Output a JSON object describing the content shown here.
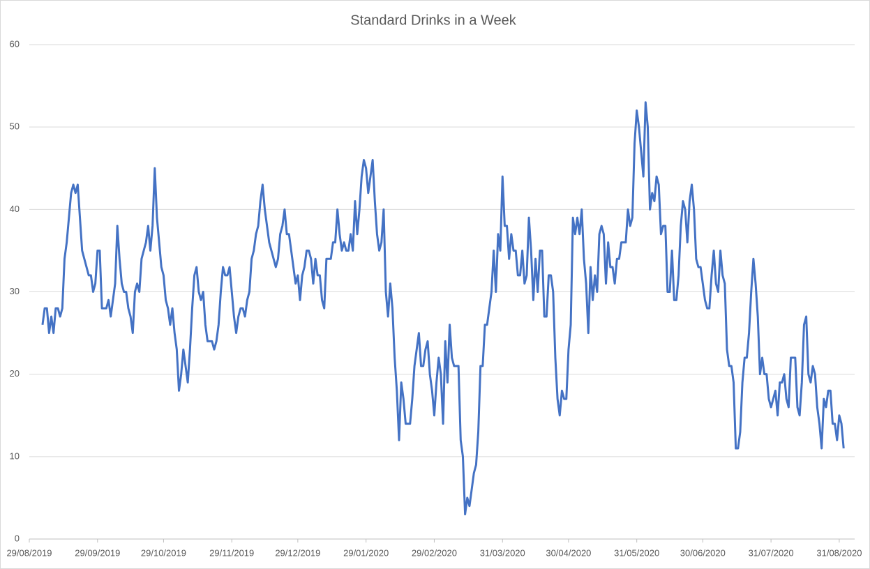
{
  "chart_data": {
    "type": "line",
    "title": "Standard Drinks in a Week",
    "x": [
      "2019-09-04",
      "2019-09-05",
      "2019-09-06",
      "2019-09-07",
      "2019-09-08",
      "2019-09-09",
      "2019-09-10",
      "2019-09-11",
      "2019-09-12",
      "2019-09-13",
      "2019-09-14",
      "2019-09-15",
      "2019-09-16",
      "2019-09-17",
      "2019-09-18",
      "2019-09-19",
      "2019-09-20",
      "2019-09-21",
      "2019-09-22",
      "2019-09-23",
      "2019-09-24",
      "2019-09-25",
      "2019-09-26",
      "2019-09-27",
      "2019-09-28",
      "2019-09-29",
      "2019-09-30",
      "2019-10-01",
      "2019-10-02",
      "2019-10-03",
      "2019-10-04",
      "2019-10-05",
      "2019-10-06",
      "2019-10-07",
      "2019-10-08",
      "2019-10-09",
      "2019-10-10",
      "2019-10-11",
      "2019-10-12",
      "2019-10-13",
      "2019-10-14",
      "2019-10-15",
      "2019-10-16",
      "2019-10-17",
      "2019-10-18",
      "2019-10-19",
      "2019-10-20",
      "2019-10-21",
      "2019-10-22",
      "2019-10-23",
      "2019-10-24",
      "2019-10-25",
      "2019-10-26",
      "2019-10-27",
      "2019-10-28",
      "2019-10-29",
      "2019-10-30",
      "2019-10-31",
      "2019-11-01",
      "2019-11-02",
      "2019-11-03",
      "2019-11-04",
      "2019-11-05",
      "2019-11-06",
      "2019-11-07",
      "2019-11-08",
      "2019-11-09",
      "2019-11-10",
      "2019-11-11",
      "2019-11-12",
      "2019-11-13",
      "2019-11-14",
      "2019-11-15",
      "2019-11-16",
      "2019-11-17",
      "2019-11-18",
      "2019-11-19",
      "2019-11-20",
      "2019-11-21",
      "2019-11-22",
      "2019-11-23",
      "2019-11-24",
      "2019-11-25",
      "2019-11-26",
      "2019-11-27",
      "2019-11-28",
      "2019-11-29",
      "2019-11-30",
      "2019-12-01",
      "2019-12-02",
      "2019-12-03",
      "2019-12-04",
      "2019-12-05",
      "2019-12-06",
      "2019-12-07",
      "2019-12-08",
      "2019-12-09",
      "2019-12-10",
      "2019-12-11",
      "2019-12-12",
      "2019-12-13",
      "2019-12-14",
      "2019-12-15",
      "2019-12-16",
      "2019-12-17",
      "2019-12-18",
      "2019-12-19",
      "2019-12-20",
      "2019-12-21",
      "2019-12-22",
      "2019-12-23",
      "2019-12-24",
      "2019-12-25",
      "2019-12-26",
      "2019-12-27",
      "2019-12-28",
      "2019-12-29",
      "2019-12-30",
      "2019-12-31",
      "2020-01-01",
      "2020-01-02",
      "2020-01-03",
      "2020-01-04",
      "2020-01-05",
      "2020-01-06",
      "2020-01-07",
      "2020-01-08",
      "2020-01-09",
      "2020-01-10",
      "2020-01-11",
      "2020-01-12",
      "2020-01-13",
      "2020-01-14",
      "2020-01-15",
      "2020-01-16",
      "2020-01-17",
      "2020-01-18",
      "2020-01-19",
      "2020-01-20",
      "2020-01-21",
      "2020-01-22",
      "2020-01-23",
      "2020-01-24",
      "2020-01-25",
      "2020-01-26",
      "2020-01-27",
      "2020-01-28",
      "2020-01-29",
      "2020-01-30",
      "2020-01-31",
      "2020-02-01",
      "2020-02-02",
      "2020-02-03",
      "2020-02-04",
      "2020-02-05",
      "2020-02-06",
      "2020-02-07",
      "2020-02-08",
      "2020-02-09",
      "2020-02-10",
      "2020-02-11",
      "2020-02-12",
      "2020-02-13",
      "2020-02-14",
      "2020-02-15",
      "2020-02-16",
      "2020-02-17",
      "2020-02-18",
      "2020-02-19",
      "2020-02-20",
      "2020-02-21",
      "2020-02-22",
      "2020-02-23",
      "2020-02-24",
      "2020-02-25",
      "2020-02-26",
      "2020-02-27",
      "2020-02-28",
      "2020-02-29",
      "2020-03-01",
      "2020-03-02",
      "2020-03-03",
      "2020-03-04",
      "2020-03-05",
      "2020-03-06",
      "2020-03-07",
      "2020-03-08",
      "2020-03-09",
      "2020-03-10",
      "2020-03-11",
      "2020-03-12",
      "2020-03-13",
      "2020-03-14",
      "2020-03-15",
      "2020-03-16",
      "2020-03-17",
      "2020-03-18",
      "2020-03-19",
      "2020-03-20",
      "2020-03-21",
      "2020-03-22",
      "2020-03-23",
      "2020-03-24",
      "2020-03-25",
      "2020-03-26",
      "2020-03-27",
      "2020-03-28",
      "2020-03-29",
      "2020-03-30",
      "2020-03-31",
      "2020-04-01",
      "2020-04-02",
      "2020-04-03",
      "2020-04-04",
      "2020-04-05",
      "2020-04-06",
      "2020-04-07",
      "2020-04-08",
      "2020-04-09",
      "2020-04-10",
      "2020-04-11",
      "2020-04-12",
      "2020-04-13",
      "2020-04-14",
      "2020-04-15",
      "2020-04-16",
      "2020-04-17",
      "2020-04-18",
      "2020-04-19",
      "2020-04-20",
      "2020-04-21",
      "2020-04-22",
      "2020-04-23",
      "2020-04-24",
      "2020-04-25",
      "2020-04-26",
      "2020-04-27",
      "2020-04-28",
      "2020-04-29",
      "2020-04-30",
      "2020-05-01",
      "2020-05-02",
      "2020-05-03",
      "2020-05-04",
      "2020-05-05",
      "2020-05-06",
      "2020-05-07",
      "2020-05-08",
      "2020-05-09",
      "2020-05-10",
      "2020-05-11",
      "2020-05-12",
      "2020-05-13",
      "2020-05-14",
      "2020-05-15",
      "2020-05-16",
      "2020-05-17",
      "2020-05-18",
      "2020-05-19",
      "2020-05-20",
      "2020-05-21",
      "2020-05-22",
      "2020-05-23",
      "2020-05-24",
      "2020-05-25",
      "2020-05-26",
      "2020-05-27",
      "2020-05-28",
      "2020-05-29",
      "2020-05-30",
      "2020-05-31",
      "2020-06-01",
      "2020-06-02",
      "2020-06-03",
      "2020-06-04",
      "2020-06-05",
      "2020-06-06",
      "2020-06-07",
      "2020-06-08",
      "2020-06-09",
      "2020-06-10",
      "2020-06-11",
      "2020-06-12",
      "2020-06-13",
      "2020-06-14",
      "2020-06-15",
      "2020-06-16",
      "2020-06-17",
      "2020-06-18",
      "2020-06-19",
      "2020-06-20",
      "2020-06-21",
      "2020-06-22",
      "2020-06-23",
      "2020-06-24",
      "2020-06-25",
      "2020-06-26",
      "2020-06-27",
      "2020-06-28",
      "2020-06-29",
      "2020-06-30",
      "2020-07-01",
      "2020-07-02",
      "2020-07-03",
      "2020-07-04",
      "2020-07-05",
      "2020-07-06",
      "2020-07-07",
      "2020-07-08",
      "2020-07-09",
      "2020-07-10",
      "2020-07-11",
      "2020-07-12",
      "2020-07-13",
      "2020-07-14",
      "2020-07-15",
      "2020-07-16",
      "2020-07-17",
      "2020-07-18",
      "2020-07-19",
      "2020-07-20",
      "2020-07-21",
      "2020-07-22",
      "2020-07-23",
      "2020-07-24",
      "2020-07-25",
      "2020-07-26",
      "2020-07-27",
      "2020-07-28",
      "2020-07-29",
      "2020-07-30",
      "2020-07-31",
      "2020-08-01",
      "2020-08-02",
      "2020-08-03",
      "2020-08-04",
      "2020-08-05",
      "2020-08-06",
      "2020-08-07",
      "2020-08-08",
      "2020-08-09",
      "2020-08-10",
      "2020-08-11",
      "2020-08-12",
      "2020-08-13",
      "2020-08-14",
      "2020-08-15",
      "2020-08-16",
      "2020-08-17",
      "2020-08-18",
      "2020-08-19",
      "2020-08-20",
      "2020-08-21",
      "2020-08-22",
      "2020-08-23",
      "2020-08-24",
      "2020-08-25",
      "2020-08-26",
      "2020-08-27",
      "2020-08-28",
      "2020-08-29",
      "2020-08-30",
      "2020-08-31",
      "2020-09-01",
      "2020-09-02"
    ],
    "series": [
      {
        "color": "#4472c4",
        "values": [
          26,
          28,
          28,
          25,
          27,
          25,
          28,
          28,
          27,
          28,
          34,
          36,
          39,
          42,
          43,
          42,
          43,
          39,
          35,
          34,
          33,
          32,
          32,
          30,
          31,
          35,
          35,
          28,
          28,
          28,
          29,
          27,
          29,
          31,
          38,
          34,
          31,
          30,
          30,
          28,
          27,
          25,
          30,
          31,
          30,
          34,
          35,
          36,
          38,
          35,
          38,
          45,
          39,
          36,
          33,
          32,
          29,
          28,
          26,
          28,
          25,
          23,
          18,
          20,
          23,
          21,
          19,
          23,
          28,
          32,
          33,
          30,
          29,
          30,
          26,
          24,
          24,
          24,
          23,
          24,
          26,
          30,
          33,
          32,
          32,
          33,
          30,
          27,
          25,
          27,
          28,
          28,
          27,
          29,
          30,
          34,
          35,
          37,
          38,
          41,
          43,
          40,
          38,
          36,
          35,
          34,
          33,
          34,
          37,
          38,
          40,
          37,
          37,
          35,
          33,
          31,
          32,
          29,
          32,
          33,
          35,
          35,
          34,
          31,
          34,
          32,
          32,
          29,
          28,
          34,
          34,
          34,
          36,
          36,
          40,
          37,
          35,
          36,
          35,
          35,
          37,
          35,
          41,
          37,
          40,
          44,
          46,
          45,
          42,
          44,
          46,
          41,
          37,
          35,
          36,
          40,
          30,
          27,
          31,
          28,
          22,
          18,
          12,
          19,
          17,
          14,
          14,
          14,
          17,
          21,
          23,
          25,
          21,
          21,
          23,
          24,
          20,
          18,
          15,
          19,
          22,
          20,
          14,
          24,
          19,
          26,
          22,
          21,
          21,
          21,
          12,
          10,
          3,
          5,
          4,
          6,
          8,
          9,
          13,
          21,
          21,
          26,
          26,
          28,
          30,
          35,
          30,
          37,
          35,
          44,
          38,
          38,
          34,
          37,
          35,
          35,
          32,
          32,
          35,
          31,
          32,
          39,
          35,
          29,
          34,
          30,
          35,
          35,
          27,
          27,
          32,
          32,
          30,
          22,
          17,
          15,
          18,
          17,
          17,
          23,
          26,
          39,
          37,
          39,
          37,
          40,
          34,
          31,
          25,
          33,
          29,
          32,
          30,
          37,
          38,
          37,
          31,
          36,
          33,
          33,
          31,
          34,
          34,
          36,
          36,
          36,
          40,
          38,
          39,
          48,
          52,
          50,
          47,
          44,
          53,
          50,
          40,
          42,
          41,
          44,
          43,
          37,
          38,
          38,
          30,
          30,
          35,
          29,
          29,
          32,
          38,
          41,
          40,
          36,
          41,
          43,
          40,
          34,
          33,
          33,
          31,
          29,
          28,
          28,
          32,
          35,
          31,
          30,
          35,
          32,
          31,
          23,
          21,
          21,
          19,
          11,
          11,
          13,
          19,
          22,
          22,
          25,
          30,
          34,
          31,
          27,
          20,
          22,
          20,
          20,
          17,
          16,
          17,
          18,
          15,
          19,
          19,
          20,
          17,
          16,
          22,
          22,
          22,
          16,
          15,
          19,
          26,
          27,
          20,
          19,
          21,
          20,
          16,
          14,
          11,
          17,
          16,
          18,
          18,
          14,
          14,
          12,
          15,
          14,
          11
        ]
      }
    ],
    "xlim": [
      "2019-08-29",
      "2020-09-07"
    ],
    "xticks": [
      {
        "value": "2019-08-29",
        "label": "29/08/2019"
      },
      {
        "value": "2019-09-29",
        "label": "29/09/2019"
      },
      {
        "value": "2019-10-29",
        "label": "29/10/2019"
      },
      {
        "value": "2019-11-29",
        "label": "29/11/2019"
      },
      {
        "value": "2019-12-29",
        "label": "29/12/2019"
      },
      {
        "value": "2020-01-29",
        "label": "29/01/2020"
      },
      {
        "value": "2020-02-29",
        "label": "29/02/2020"
      },
      {
        "value": "2020-03-31",
        "label": "31/03/2020"
      },
      {
        "value": "2020-04-30",
        "label": "30/04/2020"
      },
      {
        "value": "2020-05-31",
        "label": "31/05/2020"
      },
      {
        "value": "2020-06-30",
        "label": "30/06/2020"
      },
      {
        "value": "2020-07-31",
        "label": "31/07/2020"
      },
      {
        "value": "2020-08-31",
        "label": "31/08/2020"
      }
    ],
    "ylim": [
      0,
      60
    ],
    "yticks": [
      0,
      10,
      20,
      30,
      40,
      50,
      60
    ],
    "grid": true
  }
}
